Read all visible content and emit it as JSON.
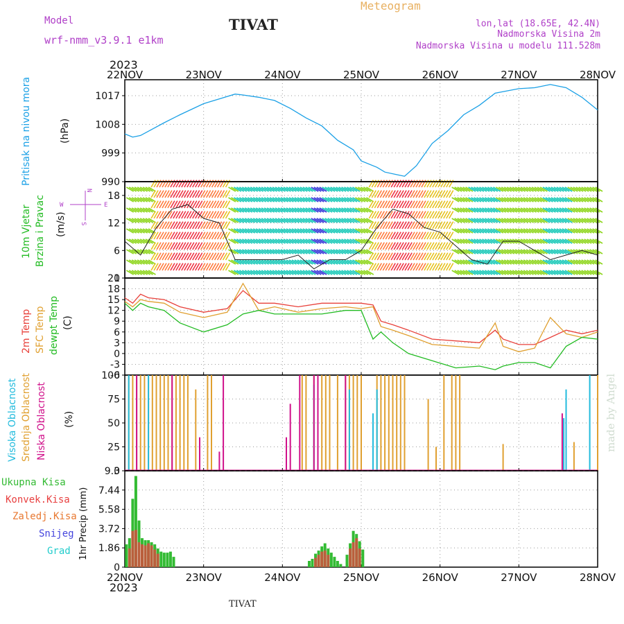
{
  "header": {
    "model_label": "Model",
    "model_name": "wrf-nmm_v3.9.1  e1km",
    "station": "TIVAT",
    "meteogram": "Meteogram",
    "lonlat": "lon,lat (18.65E, 42.4N)",
    "altitude": "Nadmorska Visina 2m",
    "model_altitude": "Nadmorska Visina u modelu 111.528m",
    "footer_station": "TIVAT",
    "watermark": "made by Angel"
  },
  "colors": {
    "pressure": "#1aa0e6",
    "temp2m": "#e8403a",
    "sfc": "#e0a030",
    "dew": "#22bb22",
    "cyan": "#22bbdd",
    "purple": "#b040c8",
    "magenta": "#d0108a",
    "blue": "#4040d8",
    "precip_total": "#33bb33",
    "precip_conv": "#e84040",
    "precip_frz": "#e87830",
    "snow": "#4444dd",
    "grad": "#22cccc",
    "meteogram": "#e8b060"
  },
  "chart_data": [
    {
      "type": "line",
      "panel": "pressure",
      "ylabel_1": "Pritisak na nivou mora",
      "ylabel_2": "(hPa)",
      "x_unit": "days since 22NOV 00Z",
      "ylim": [
        990,
        1022
      ],
      "yticks": [
        "990",
        "999",
        "1008",
        "1017"
      ],
      "series": [
        {
          "name": "Pritisak na nivou mora",
          "x": [
            0,
            0.1,
            0.2,
            0.35,
            0.5,
            0.7,
            1.0,
            1.2,
            1.4,
            1.5,
            1.7,
            1.9,
            2.1,
            2.3,
            2.5,
            2.7,
            2.9,
            3.0,
            3.2,
            3.3,
            3.45,
            3.55,
            3.7,
            3.9,
            4.1,
            4.3,
            4.5,
            4.7,
            5.0,
            5.2,
            5.4,
            5.6,
            5.8,
            6.0
          ],
          "values": [
            1005,
            1004,
            1004.5,
            1006.5,
            1008.5,
            1011,
            1014.5,
            1016,
            1017.5,
            1017.2,
            1016.5,
            1015.5,
            1013,
            1010,
            1007.5,
            1003,
            1000,
            996.5,
            994.5,
            993,
            992.2,
            991.7,
            995,
            1002,
            1006,
            1011,
            1014,
            1017.8,
            1019.2,
            1019.5,
            1020.5,
            1019.5,
            1016.5,
            1012.5
          ]
        }
      ]
    },
    {
      "type": "line",
      "panel": "wind",
      "ylabel_1": "10m Vjetar",
      "ylabel_2": "Brzina i Pravac",
      "ylabel_3": "(m/s)",
      "compass_n": "N",
      "compass_w": "W",
      "compass_e": "E",
      "compass_s": "S",
      "ylim": [
        0,
        21
      ],
      "yticks": [
        "0",
        "6",
        "12",
        "18"
      ],
      "series": [
        {
          "name": "wind speed",
          "x": [
            0,
            0.2,
            0.4,
            0.6,
            0.8,
            1.0,
            1.2,
            1.4,
            1.6,
            1.8,
            2.0,
            2.2,
            2.4,
            2.6,
            2.8,
            3.0,
            3.2,
            3.4,
            3.6,
            3.8,
            4.0,
            4.2,
            4.4,
            4.6,
            4.8,
            5.0,
            5.2,
            5.4,
            5.6,
            5.8,
            6.0
          ],
          "values": [
            8,
            5,
            11,
            15,
            16,
            13,
            12,
            4,
            4,
            4,
            4,
            5,
            2,
            4,
            4,
            6,
            11,
            15,
            14,
            11,
            10,
            7,
            4,
            3,
            8,
            8,
            6,
            4,
            5,
            6,
            5
          ]
        }
      ]
    },
    {
      "type": "line",
      "panel": "temperature",
      "ylabel_1": "2m Temp",
      "ylabel_2": "SFC Temp",
      "ylabel_3": "dewpt Temp",
      "ylabel_4": "(C)",
      "ylim": [
        -6,
        21
      ],
      "yticks": [
        "-6",
        "-3",
        "0",
        "3",
        "6",
        "9",
        "12",
        "15",
        "18",
        "21"
      ],
      "series": [
        {
          "name": "2m Temp",
          "x": [
            0,
            0.1,
            0.2,
            0.3,
            0.5,
            0.7,
            1.0,
            1.3,
            1.5,
            1.7,
            1.9,
            2.2,
            2.5,
            2.8,
            3.0,
            3.15,
            3.25,
            3.4,
            3.6,
            3.9,
            4.2,
            4.5,
            4.7,
            4.8,
            5.0,
            5.2,
            5.4,
            5.6,
            5.8,
            6.0
          ],
          "values": [
            15.5,
            14,
            16.5,
            15.5,
            15,
            13,
            11.5,
            12.5,
            17.5,
            14,
            14,
            13,
            14,
            14,
            14,
            13.5,
            9,
            8,
            6.5,
            4,
            3.5,
            3,
            6.5,
            4,
            2.5,
            2.5,
            4.5,
            6.5,
            5.5,
            6.5
          ]
        },
        {
          "name": "SFC Temp",
          "x": [
            0,
            0.1,
            0.2,
            0.3,
            0.5,
            0.7,
            1.0,
            1.3,
            1.5,
            1.7,
            1.9,
            2.2,
            2.5,
            2.8,
            3.0,
            3.15,
            3.25,
            3.4,
            3.6,
            3.9,
            4.2,
            4.5,
            4.7,
            4.8,
            5.0,
            5.2,
            5.4,
            5.6,
            5.8,
            6.0
          ],
          "values": [
            14.5,
            13,
            15,
            14.5,
            14,
            11.5,
            10,
            11.5,
            19.5,
            12,
            13,
            11.5,
            12.5,
            13,
            12.5,
            13,
            7.5,
            6.5,
            5,
            2.5,
            2,
            1.5,
            8.5,
            2,
            0.5,
            1.5,
            10,
            5.5,
            4.5,
            6
          ]
        },
        {
          "name": "dewpt Temp",
          "x": [
            0,
            0.1,
            0.2,
            0.3,
            0.5,
            0.7,
            1.0,
            1.3,
            1.5,
            1.7,
            1.9,
            2.2,
            2.5,
            2.8,
            3.0,
            3.15,
            3.25,
            3.4,
            3.6,
            3.9,
            4.2,
            4.5,
            4.7,
            4.8,
            5.0,
            5.2,
            5.4,
            5.6,
            5.8,
            6.0
          ],
          "values": [
            14,
            12,
            14,
            13,
            12,
            8.5,
            6,
            8,
            11,
            12,
            11,
            11,
            11,
            12,
            12,
            4,
            6,
            3,
            0,
            -2,
            -4,
            -3.5,
            -4.5,
            -3.5,
            -2.5,
            -2.5,
            -4,
            2,
            4.5,
            4
          ]
        }
      ]
    },
    {
      "type": "bar",
      "panel": "cloud",
      "ylabel_1": "Visoka Oblacnost",
      "ylabel_2": "Srednja Oblacnost",
      "ylabel_3": "Niska Oblacnost",
      "ylabel_4": "(%)",
      "ylim": [
        0,
        100
      ],
      "yticks": [
        "0",
        "25",
        "50",
        "75",
        "100"
      ],
      "series": [
        {
          "name": "Srednja Oblacnost",
          "x": [
            0.05,
            0.1,
            0.15,
            0.2,
            0.25,
            0.3,
            0.35,
            0.4,
            0.45,
            0.5,
            0.55,
            0.6,
            0.65,
            0.7,
            0.75,
            0.8,
            0.9,
            1.05,
            1.1,
            2.25,
            2.3,
            2.4,
            2.45,
            2.5,
            2.55,
            2.6,
            2.7,
            2.8,
            2.85,
            2.9,
            2.95,
            3.0,
            3.2,
            3.25,
            3.3,
            3.35,
            3.4,
            3.45,
            3.5,
            3.55,
            3.85,
            3.95,
            4.05,
            4.15,
            4.2,
            4.25,
            4.8,
            5.7,
            6.0
          ],
          "values": [
            100,
            100,
            100,
            100,
            100,
            100,
            100,
            100,
            100,
            100,
            100,
            100,
            100,
            100,
            100,
            100,
            85,
            100,
            100,
            100,
            100,
            100,
            100,
            100,
            100,
            100,
            100,
            100,
            100,
            100,
            100,
            100,
            100,
            100,
            100,
            100,
            100,
            100,
            100,
            100,
            75,
            25,
            100,
            100,
            100,
            100,
            28,
            30,
            100
          ]
        },
        {
          "name": "Visoka Oblacnost",
          "x": [
            0.05,
            0.3,
            2.4,
            2.85,
            3.15,
            3.2,
            5.57,
            5.6,
            5.9
          ],
          "values": [
            100,
            100,
            90,
            85,
            60,
            85,
            55,
            85,
            100
          ]
        },
        {
          "name": "Niska Oblacnost",
          "x": [
            0.15,
            0.6,
            0.95,
            1.25,
            1.2,
            2.05,
            2.1,
            2.22,
            2.4,
            2.45,
            2.8,
            5.55
          ],
          "values": [
            100,
            100,
            35,
            100,
            20,
            35,
            70,
            100,
            100,
            100,
            100,
            60
          ]
        }
      ]
    },
    {
      "type": "bar",
      "panel": "precip",
      "ylabel_1": "Ukupna Kisa",
      "ylabel_2": "Konvek.Kisa",
      "ylabel_3": "Zaledj.Kisa",
      "ylabel_4": "Snijeg",
      "ylabel_5": "Grad",
      "ylabel_axis": "1hr Precip (mm)",
      "ylim": [
        0,
        9.3
      ],
      "yticks": [
        "0",
        "1.86",
        "3.72",
        "5.58",
        "7.44",
        "9.3"
      ],
      "series": [
        {
          "name": "Ukupna Kisa",
          "x": [
            0.02,
            0.06,
            0.1,
            0.14,
            0.18,
            0.22,
            0.26,
            0.3,
            0.34,
            0.38,
            0.42,
            0.46,
            0.5,
            0.54,
            0.58,
            0.62,
            2.34,
            2.38,
            2.42,
            2.46,
            2.5,
            2.54,
            2.58,
            2.62,
            2.66,
            2.7,
            2.74,
            2.82,
            2.86,
            2.9,
            2.94,
            2.98,
            3.02
          ],
          "values": [
            2.2,
            2.8,
            6.6,
            8.8,
            4.5,
            2.8,
            2.6,
            2.6,
            2.4,
            2.2,
            1.8,
            1.5,
            1.4,
            1.4,
            1.5,
            1.0,
            0.6,
            0.8,
            1.3,
            1.6,
            2.0,
            2.3,
            1.8,
            1.4,
            1.0,
            0.6,
            0.3,
            1.2,
            2.3,
            3.5,
            3.2,
            2.5,
            1.7
          ]
        },
        {
          "name": "Konvek.Kisa",
          "x": [
            0.06,
            0.1,
            0.14,
            0.18,
            0.22,
            0.26,
            0.3,
            0.34,
            0.38,
            0.42,
            2.42,
            2.46,
            2.5,
            2.54,
            2.58,
            2.86,
            2.9,
            2.94,
            2.98
          ],
          "values": [
            1.8,
            3.5,
            3.6,
            2.4,
            2.2,
            2.1,
            2.3,
            2.1,
            1.7,
            1.3,
            0.9,
            1.2,
            1.5,
            1.6,
            1.2,
            1.8,
            2.4,
            2.8,
            1.8
          ]
        }
      ]
    }
  ],
  "axis": {
    "year": "2023",
    "days": [
      "22NOV",
      "23NOV",
      "24NOV",
      "25NOV",
      "26NOV",
      "27NOV",
      "28NOV"
    ]
  }
}
